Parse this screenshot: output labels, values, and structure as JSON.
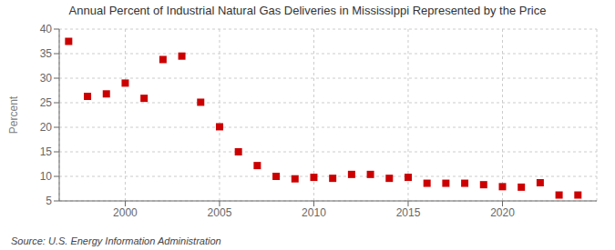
{
  "chart_data": {
    "type": "scatter",
    "title": "Annual Percent of Industrial Natural Gas Deliveries in Mississippi Represented by the Price",
    "ylabel": "Percent",
    "annotations": [
      "Source: U.S. Energy Information Administration"
    ],
    "x": [
      1997,
      1998,
      1999,
      2000,
      2001,
      2002,
      2003,
      2004,
      2005,
      2006,
      2007,
      2008,
      2009,
      2010,
      2011,
      2012,
      2013,
      2014,
      2015,
      2016,
      2017,
      2018,
      2019,
      2020,
      2021,
      2022,
      2023,
      2024
    ],
    "values": [
      37.5,
      26.3,
      26.8,
      29.0,
      25.9,
      33.8,
      34.5,
      25.1,
      20.1,
      15.0,
      12.2,
      10.0,
      9.5,
      9.8,
      9.6,
      10.4,
      10.4,
      9.6,
      9.8,
      8.6,
      8.6,
      8.6,
      8.3,
      7.9,
      7.8,
      8.7,
      6.2,
      6.2
    ],
    "color": "#cc0000",
    "marker": "square",
    "xlim": [
      1996.5,
      2025
    ],
    "xticks": [
      2000,
      2005,
      2010,
      2015,
      2020
    ],
    "ylim": [
      5,
      40
    ],
    "yticks": [
      5,
      10,
      15,
      20,
      25,
      30,
      35,
      40
    ],
    "grid": true
  }
}
